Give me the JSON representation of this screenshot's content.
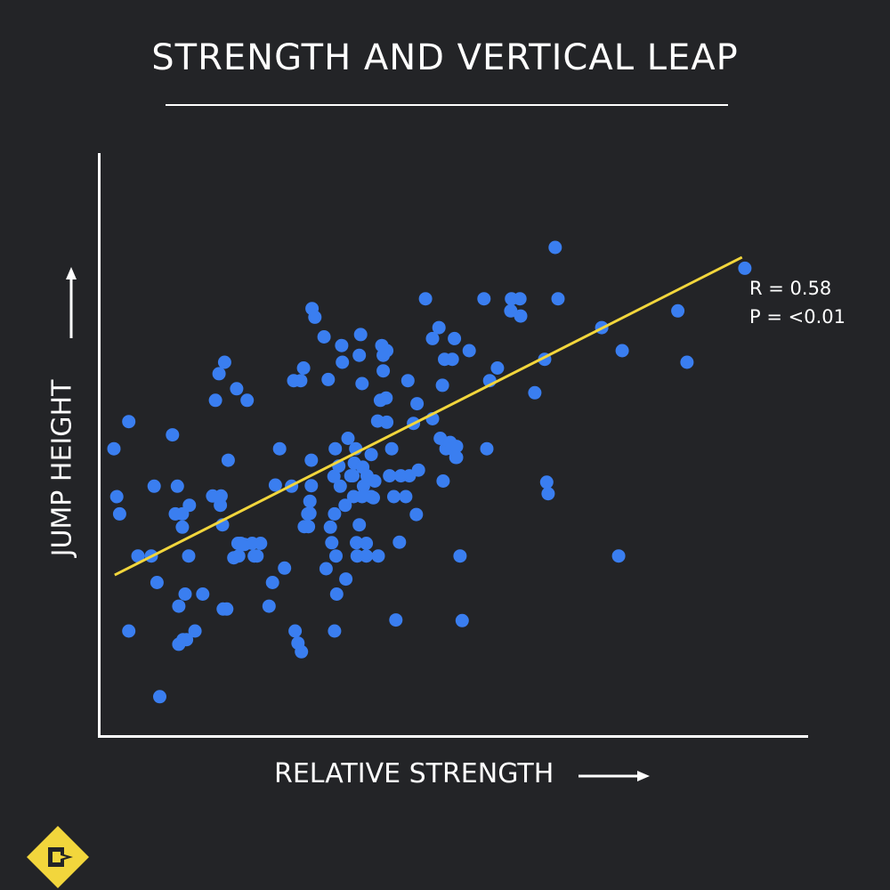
{
  "chart_data": {
    "type": "scatter",
    "title": "STRENGTH AND VERTICAL LEAP",
    "xlabel": "RELATIVE STRENGTH",
    "ylabel": "JUMP HEIGHT",
    "xlim": [
      0,
      100
    ],
    "ylim": [
      0,
      100
    ],
    "grid": false,
    "colors": {
      "point": "#3a7ef0",
      "trendline": "#f2d63c",
      "background": "#232427",
      "axis": "#ffffff"
    },
    "trendline": {
      "x": [
        2,
        91
      ],
      "y": [
        27.3,
        82.4
      ]
    },
    "annotations": [
      "R = 0.58",
      "P = <0.01"
    ],
    "points": [
      [
        1.9,
        49.2
      ],
      [
        2.7,
        37.9
      ],
      [
        4.0,
        17.6
      ],
      [
        4.0,
        53.9
      ],
      [
        5.3,
        30.6
      ],
      [
        7.2,
        30.6
      ],
      [
        7.6,
        42.7
      ],
      [
        8.0,
        26.0
      ],
      [
        8.4,
        6.2
      ],
      [
        10.2,
        51.6
      ],
      [
        10.6,
        37.9
      ],
      [
        11.1,
        21.9
      ],
      [
        11.1,
        15.3
      ],
      [
        11.6,
        37.9
      ],
      [
        11.6,
        35.6
      ],
      [
        11.7,
        16.1
      ],
      [
        12.0,
        24.0
      ],
      [
        12.2,
        16.1
      ],
      [
        12.5,
        30.6
      ],
      [
        12.6,
        39.4
      ],
      [
        13.4,
        17.6
      ],
      [
        14.5,
        24.0
      ],
      [
        15.9,
        41.0
      ],
      [
        16.3,
        57.6
      ],
      [
        16.8,
        62.2
      ],
      [
        17.0,
        39.4
      ],
      [
        17.1,
        41.0
      ],
      [
        17.3,
        36.0
      ],
      [
        17.4,
        21.4
      ],
      [
        17.9,
        21.4
      ],
      [
        18.1,
        47.2
      ],
      [
        18.9,
        30.3
      ],
      [
        19.3,
        59.6
      ],
      [
        19.5,
        32.8
      ],
      [
        19.9,
        32.8
      ],
      [
        19.6,
        30.6
      ],
      [
        20.4,
        32.6
      ],
      [
        20.8,
        57.6
      ],
      [
        21.5,
        32.8
      ],
      [
        21.8,
        30.6
      ],
      [
        22.2,
        30.6
      ],
      [
        22.7,
        32.8
      ],
      [
        23.9,
        21.9
      ],
      [
        24.4,
        26.0
      ],
      [
        24.8,
        42.9
      ],
      [
        25.4,
        49.2
      ],
      [
        26.1,
        28.5
      ],
      [
        27.1,
        42.7
      ],
      [
        27.6,
        17.6
      ],
      [
        28.0,
        15.5
      ],
      [
        28.5,
        14.0
      ],
      [
        28.4,
        61.0
      ],
      [
        28.8,
        63.2
      ],
      [
        28.9,
        35.7
      ],
      [
        29.4,
        37.9
      ],
      [
        29.5,
        35.7
      ],
      [
        29.7,
        38.0
      ],
      [
        29.9,
        47.2
      ],
      [
        29.7,
        40.1
      ],
      [
        29.9,
        42.8
      ],
      [
        30.0,
        73.5
      ],
      [
        30.4,
        72.0
      ],
      [
        31.7,
        68.6
      ],
      [
        32.0,
        28.4
      ],
      [
        32.3,
        61.2
      ],
      [
        32.6,
        35.6
      ],
      [
        32.8,
        32.9
      ],
      [
        33.1,
        44.4
      ],
      [
        33.2,
        37.9
      ],
      [
        33.2,
        17.6
      ],
      [
        33.3,
        49.2
      ],
      [
        33.4,
        30.6
      ],
      [
        33.5,
        24.0
      ],
      [
        33.8,
        46.2
      ],
      [
        34.0,
        42.7
      ],
      [
        34.2,
        67.1
      ],
      [
        34.3,
        64.2
      ],
      [
        34.7,
        39.4
      ],
      [
        34.8,
        26.6
      ],
      [
        35.1,
        51.0
      ],
      [
        35.5,
        44.5
      ],
      [
        35.8,
        44.5
      ],
      [
        35.9,
        40.9
      ],
      [
        36.0,
        46.7
      ],
      [
        36.2,
        49.2
      ],
      [
        36.3,
        32.9
      ],
      [
        36.4,
        30.6
      ],
      [
        36.7,
        36.0
      ],
      [
        36.7,
        65.4
      ],
      [
        36.9,
        69.0
      ],
      [
        37.1,
        60.5
      ],
      [
        37.2,
        46.0
      ],
      [
        37.3,
        42.7
      ],
      [
        37.7,
        30.6
      ],
      [
        37.7,
        32.8
      ],
      [
        37.8,
        44.5
      ],
      [
        38.4,
        40.9
      ],
      [
        38.4,
        48.2
      ],
      [
        38.7,
        40.7
      ],
      [
        38.9,
        43.6
      ],
      [
        39.3,
        54.0
      ],
      [
        39.4,
        30.6
      ],
      [
        39.7,
        57.6
      ],
      [
        39.9,
        67.1
      ],
      [
        40.1,
        62.7
      ],
      [
        40.1,
        65.4
      ],
      [
        40.6,
        66.2
      ],
      [
        40.6,
        53.8
      ],
      [
        40.5,
        58.0
      ],
      [
        41.3,
        49.2
      ],
      [
        41.0,
        44.5
      ],
      [
        41.6,
        40.9
      ],
      [
        41.9,
        19.5
      ],
      [
        42.4,
        33.0
      ],
      [
        42.6,
        44.5
      ],
      [
        43.3,
        40.9
      ],
      [
        43.6,
        61.0
      ],
      [
        43.8,
        44.5
      ],
      [
        44.4,
        53.6
      ],
      [
        44.8,
        37.8
      ],
      [
        45.1,
        45.5
      ],
      [
        44.9,
        57.0
      ],
      [
        46.1,
        75.2
      ],
      [
        47.1,
        54.4
      ],
      [
        47.1,
        68.3
      ],
      [
        48.0,
        70.2
      ],
      [
        48.5,
        60.2
      ],
      [
        48.8,
        64.7
      ],
      [
        48.2,
        51.0
      ],
      [
        48.6,
        43.6
      ],
      [
        49.0,
        49.2
      ],
      [
        49.6,
        50.3
      ],
      [
        49.9,
        64.7
      ],
      [
        50.2,
        68.3
      ],
      [
        50.5,
        47.7
      ],
      [
        49.8,
        49.2
      ],
      [
        50.5,
        49.6
      ],
      [
        50.4,
        47.7
      ],
      [
        51.0,
        30.6
      ],
      [
        51.3,
        19.4
      ],
      [
        52.3,
        66.2
      ],
      [
        54.4,
        75.2
      ],
      [
        55.2,
        61.0
      ],
      [
        54.8,
        49.2
      ],
      [
        56.3,
        63.2
      ],
      [
        58.2,
        73.1
      ],
      [
        58.3,
        75.2
      ],
      [
        59.5,
        75.2
      ],
      [
        59.6,
        72.2
      ],
      [
        61.6,
        58.9
      ],
      [
        63.0,
        64.7
      ],
      [
        63.3,
        43.4
      ],
      [
        63.5,
        41.4
      ],
      [
        64.5,
        84.1
      ],
      [
        64.9,
        75.2
      ],
      [
        71.1,
        70.2
      ],
      [
        73.5,
        30.6
      ],
      [
        74.0,
        66.2
      ],
      [
        81.9,
        73.1
      ],
      [
        83.2,
        64.2
      ],
      [
        91.4,
        80.5
      ],
      [
        2.3,
        40.9
      ],
      [
        10.9,
        42.7
      ],
      [
        17.6,
        64.2
      ],
      [
        27.4,
        61.0
      ],
      [
        37.1,
        40.9
      ]
    ]
  },
  "logo": {
    "name": "diamond-logo",
    "colors": [
      "#f2d63c",
      "#232427"
    ]
  }
}
